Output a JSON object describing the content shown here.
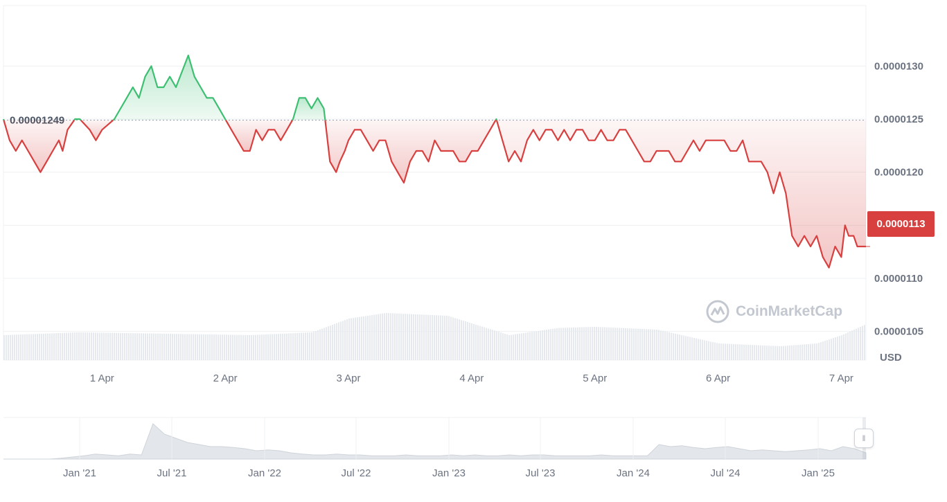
{
  "chart_data": {
    "type": "area",
    "currency_label": "USD",
    "baseline_value": 1.249e-05,
    "baseline_label": "0.00001249",
    "current_price_label": "0.0000113",
    "current_value": 1.13e-05,
    "y_ticks": [
      "0.0000130",
      "0.0000125",
      "0.0000120",
      "0.0000115",
      "0.0000110",
      "0.0000105"
    ],
    "y_tick_values": [
      1.3e-05,
      1.25e-05,
      1.2e-05,
      1.15e-05,
      1.1e-05,
      1.05e-05
    ],
    "ylim": [
      1.023e-05,
      1.357e-05
    ],
    "x_ticks": [
      "1 Apr",
      "2 Apr",
      "3 Apr",
      "4 Apr",
      "5 Apr",
      "6 Apr",
      "7 Apr"
    ],
    "xlim_days": [
      0.2,
      7.2
    ],
    "price_series": {
      "name": "",
      "x_day": [
        0.2,
        0.25,
        0.3,
        0.35,
        0.4,
        0.45,
        0.5,
        0.55,
        0.6,
        0.65,
        0.68,
        0.72,
        0.78,
        0.82,
        0.9,
        0.95,
        1.0,
        1.1,
        1.2,
        1.25,
        1.3,
        1.35,
        1.4,
        1.45,
        1.5,
        1.55,
        1.6,
        1.7,
        1.75,
        1.8,
        1.85,
        1.9,
        1.95,
        2.0,
        2.05,
        2.1,
        2.15,
        2.2,
        2.25,
        2.3,
        2.35,
        2.4,
        2.45,
        2.5,
        2.55,
        2.6,
        2.65,
        2.7,
        2.75,
        2.8,
        2.85,
        2.9,
        2.93,
        2.97,
        3.0,
        3.05,
        3.1,
        3.15,
        3.2,
        3.25,
        3.3,
        3.35,
        3.4,
        3.45,
        3.5,
        3.55,
        3.6,
        3.65,
        3.7,
        3.75,
        3.8,
        3.85,
        3.9,
        3.95,
        4.0,
        4.05,
        4.1,
        4.15,
        4.2,
        4.25,
        4.3,
        4.35,
        4.4,
        4.45,
        4.5,
        4.55,
        4.6,
        4.65,
        4.7,
        4.75,
        4.8,
        4.85,
        4.9,
        4.95,
        5.0,
        5.05,
        5.1,
        5.15,
        5.2,
        5.25,
        5.3,
        5.35,
        5.4,
        5.45,
        5.5,
        5.55,
        5.6,
        5.65,
        5.7,
        5.75,
        5.8,
        5.85,
        5.9,
        5.95,
        6.0,
        6.05,
        6.1,
        6.15,
        6.2,
        6.25,
        6.3,
        6.35,
        6.4,
        6.45,
        6.5,
        6.55,
        6.6,
        6.65,
        6.7,
        6.75,
        6.8,
        6.85,
        6.9,
        6.95,
        7.0,
        7.03,
        7.06,
        7.1,
        7.13,
        7.16,
        7.2
      ],
      "values": [
        1.25e-05,
        1.23e-05,
        1.22e-05,
        1.23e-05,
        1.22e-05,
        1.21e-05,
        1.2e-05,
        1.21e-05,
        1.22e-05,
        1.23e-05,
        1.22e-05,
        1.24e-05,
        1.25e-05,
        1.25e-05,
        1.24e-05,
        1.23e-05,
        1.24e-05,
        1.25e-05,
        1.27e-05,
        1.28e-05,
        1.27e-05,
        1.29e-05,
        1.3e-05,
        1.28e-05,
        1.28e-05,
        1.29e-05,
        1.28e-05,
        1.31e-05,
        1.29e-05,
        1.28e-05,
        1.27e-05,
        1.27e-05,
        1.26e-05,
        1.25e-05,
        1.24e-05,
        1.23e-05,
        1.22e-05,
        1.22e-05,
        1.24e-05,
        1.23e-05,
        1.24e-05,
        1.24e-05,
        1.23e-05,
        1.24e-05,
        1.25e-05,
        1.27e-05,
        1.27e-05,
        1.26e-05,
        1.27e-05,
        1.26e-05,
        1.21e-05,
        1.2e-05,
        1.21e-05,
        1.22e-05,
        1.23e-05,
        1.24e-05,
        1.24e-05,
        1.23e-05,
        1.22e-05,
        1.23e-05,
        1.23e-05,
        1.21e-05,
        1.2e-05,
        1.19e-05,
        1.21e-05,
        1.22e-05,
        1.22e-05,
        1.21e-05,
        1.23e-05,
        1.22e-05,
        1.22e-05,
        1.22e-05,
        1.21e-05,
        1.21e-05,
        1.22e-05,
        1.22e-05,
        1.23e-05,
        1.24e-05,
        1.25e-05,
        1.23e-05,
        1.21e-05,
        1.22e-05,
        1.21e-05,
        1.23e-05,
        1.24e-05,
        1.23e-05,
        1.24e-05,
        1.24e-05,
        1.23e-05,
        1.24e-05,
        1.23e-05,
        1.24e-05,
        1.24e-05,
        1.23e-05,
        1.23e-05,
        1.24e-05,
        1.23e-05,
        1.23e-05,
        1.24e-05,
        1.24e-05,
        1.23e-05,
        1.22e-05,
        1.21e-05,
        1.21e-05,
        1.22e-05,
        1.22e-05,
        1.22e-05,
        1.21e-05,
        1.21e-05,
        1.22e-05,
        1.23e-05,
        1.22e-05,
        1.23e-05,
        1.23e-05,
        1.23e-05,
        1.23e-05,
        1.22e-05,
        1.22e-05,
        1.23e-05,
        1.21e-05,
        1.21e-05,
        1.21e-05,
        1.2e-05,
        1.18e-05,
        1.2e-05,
        1.18e-05,
        1.14e-05,
        1.13e-05,
        1.14e-05,
        1.13e-05,
        1.14e-05,
        1.12e-05,
        1.11e-05,
        1.13e-05,
        1.12e-05,
        1.15e-05,
        1.14e-05,
        1.14e-05,
        1.13e-05,
        1.13e-05,
        1.13e-05
      ]
    },
    "volume_series": {
      "name": "",
      "x_day": [
        0.2,
        0.8,
        1.4,
        2.2,
        2.7,
        3.0,
        3.3,
        3.8,
        4.3,
        4.7,
        5.0,
        5.5,
        6.0,
        6.5,
        6.8,
        7.0,
        7.2
      ],
      "values": [
        0.45,
        0.5,
        0.48,
        0.45,
        0.5,
        0.75,
        0.85,
        0.8,
        0.45,
        0.58,
        0.6,
        0.55,
        0.3,
        0.25,
        0.3,
        0.45,
        0.65
      ]
    },
    "navigator": {
      "x_ticks": [
        "Jan '21",
        "Jul '21",
        "Jan '22",
        "Jul '22",
        "Jan '23",
        "Jul '23",
        "Jan '24",
        "Jul '24",
        "Jan '25"
      ],
      "series": {
        "name": "",
        "values": [
          0.0,
          0.0,
          0.0,
          0.0,
          0.0,
          0.02,
          0.05,
          0.08,
          0.12,
          0.1,
          0.08,
          0.12,
          0.1,
          0.85,
          0.6,
          0.5,
          0.4,
          0.35,
          0.3,
          0.3,
          0.28,
          0.25,
          0.2,
          0.22,
          0.2,
          0.15,
          0.12,
          0.1,
          0.1,
          0.12,
          0.1,
          0.1,
          0.08,
          0.08,
          0.08,
          0.1,
          0.08,
          0.08,
          0.08,
          0.1,
          0.08,
          0.1,
          0.08,
          0.08,
          0.1,
          0.08,
          0.1,
          0.1,
          0.08,
          0.08,
          0.08,
          0.08,
          0.1,
          0.08,
          0.08,
          0.08,
          0.08,
          0.35,
          0.3,
          0.32,
          0.28,
          0.25,
          0.28,
          0.3,
          0.25,
          0.2,
          0.22,
          0.2,
          0.18,
          0.2,
          0.22,
          0.25,
          0.2,
          0.3,
          0.25,
          0.15
        ]
      }
    }
  },
  "watermark": {
    "text": "CoinMarketCap"
  },
  "colors": {
    "up": "#3dbf72",
    "down": "#d8403f",
    "axis_text": "#6b7280",
    "grid": "#eef0f3"
  }
}
